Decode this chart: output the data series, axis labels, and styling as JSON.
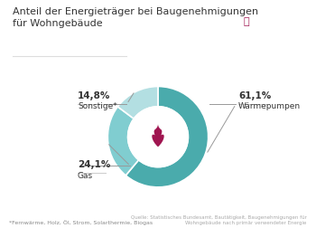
{
  "title": "Anteil der Energieträger bei Baugenehmigungen\nfür Wohngebäude",
  "slices": [
    {
      "label": "Wärmepumpen",
      "value": 61.1,
      "color": "#4aabac"
    },
    {
      "label": "Gas",
      "value": 24.1,
      "color": "#80cdd0"
    },
    {
      "label": "Sonstige*",
      "value": 14.8,
      "color": "#b3dfe2"
    }
  ],
  "donut_width": 0.4,
  "flame_color": "#a01550",
  "footnote": "*Fernwärme, Holz, Öl, Strom, Solarthermie, Biogas",
  "source": "Quelle: Statistisches Bundesamt, Bautätigkeit, Baugenehmigungen für\nWohngebäude nach primär verwendeter Energie",
  "bg_color": "#ffffff",
  "title_fontsize": 8.0,
  "title_color": "#333333",
  "label_color": "#333333",
  "line_color": "#cccccc"
}
